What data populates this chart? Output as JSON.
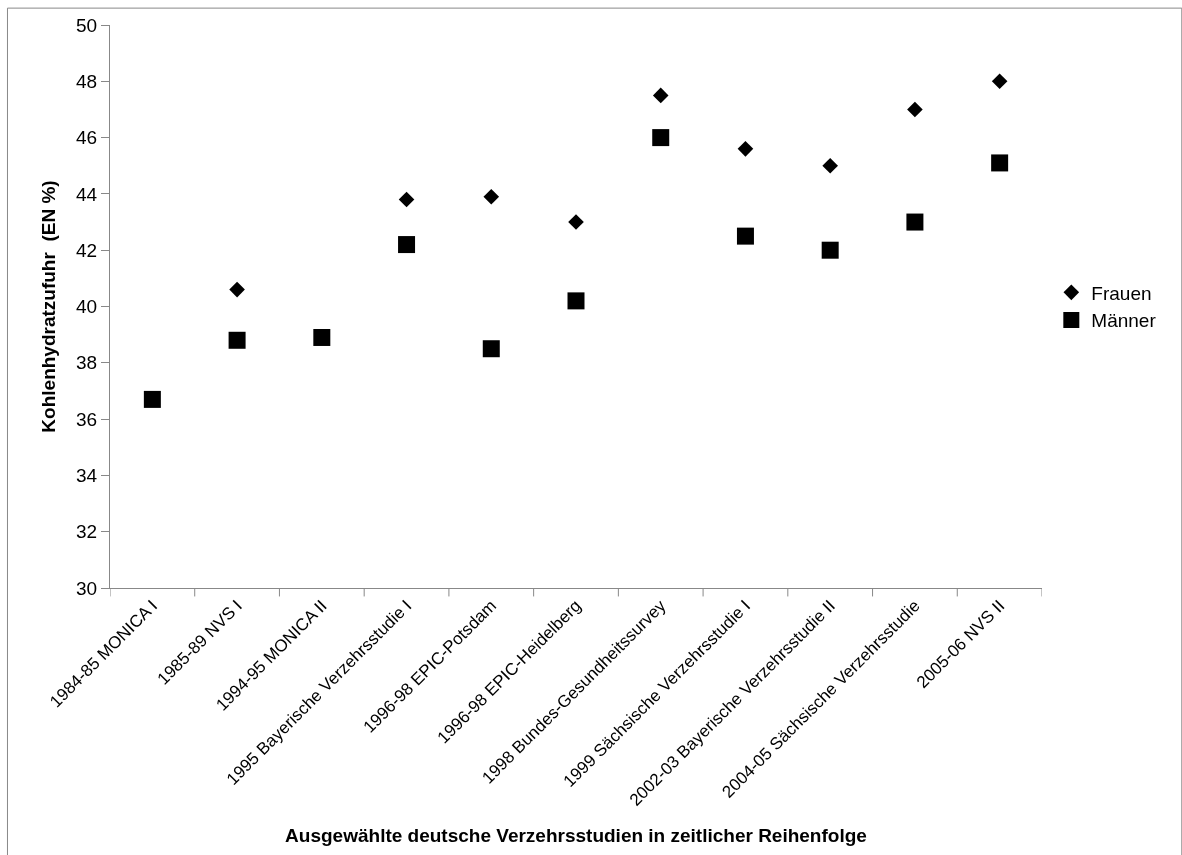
{
  "chart_data": {
    "type": "scatter",
    "xlabel": "Ausgewählte deutsche Verzehrsstudien in zeitlicher Reihenfolge",
    "ylabel": "Kohlenhydratzufuhr  (EN %)",
    "categories": [
      "1984-85 MONICA I",
      "1985-89 NVS I",
      "1994-95 MONICA II",
      "1995 Bayerische Verzehrsstudie I",
      "1996-98 EPIC-Potsdam",
      "1996-98 EPIC-Heidelberg",
      "1998 Bundes-Gesundheitssurvey",
      "1999 Sächsische Verzehrsstudie I",
      "2002-03 Bayerische Verzehrsstudie II",
      "2004-05 Sächsische Verzehrsstudie",
      "2005-06 NVS II"
    ],
    "series": [
      {
        "name": "Frauen",
        "color": "#000000",
        "marker": "diamond",
        "values": [
          null,
          40.6,
          null,
          43.8,
          43.9,
          43.0,
          47.5,
          45.6,
          45.0,
          47.0,
          48.0
        ]
      },
      {
        "name": "Männer",
        "color": "#000000",
        "marker": "square",
        "values": [
          36.7,
          38.8,
          38.9,
          42.2,
          38.5,
          40.2,
          46.0,
          42.5,
          42.0,
          43.0,
          45.1
        ]
      }
    ],
    "ylim": [
      30,
      50
    ],
    "yticks": [
      30,
      32,
      34,
      36,
      38,
      40,
      42,
      44,
      46,
      48,
      50
    ],
    "legend": "right"
  }
}
